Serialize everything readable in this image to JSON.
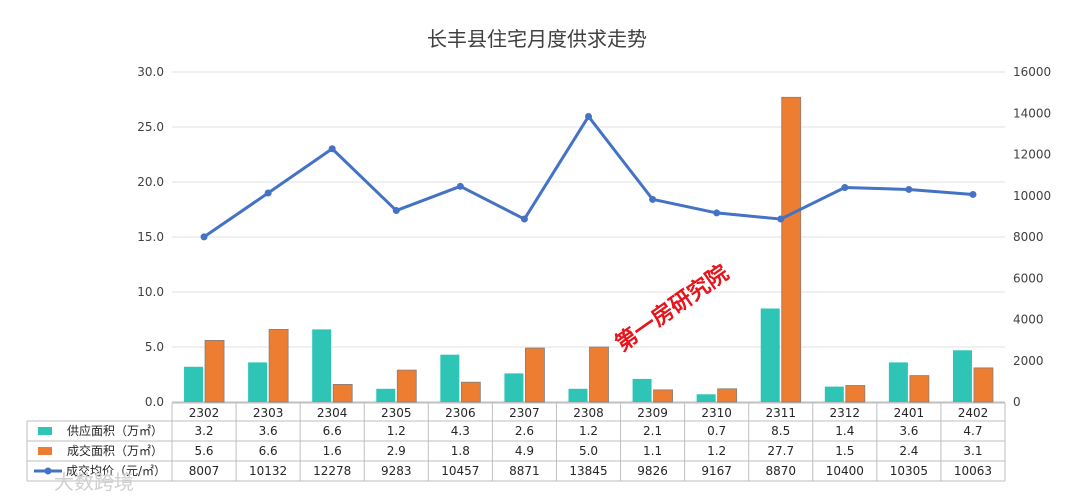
{
  "chart_data": {
    "type": "bar",
    "title": "长丰县住宅月度供求走势",
    "categories": [
      "2302",
      "2303",
      "2304",
      "2305",
      "2306",
      "2307",
      "2308",
      "2309",
      "2310",
      "2311",
      "2312",
      "2401",
      "2402"
    ],
    "series": [
      {
        "name": "供应面积（万㎡）",
        "type": "bar",
        "axis": "left",
        "color": "#2ec4b6",
        "values": [
          3.2,
          3.6,
          6.6,
          1.2,
          4.3,
          2.6,
          1.2,
          2.1,
          0.7,
          8.5,
          1.4,
          3.6,
          4.7
        ],
        "labels": [
          "3.2",
          "3.6",
          "6.6",
          "1.2",
          "4.3",
          "2.6",
          "1.2",
          "2.1",
          "0.7",
          "8.5",
          "1.4",
          "3.6",
          "4.7"
        ]
      },
      {
        "name": "成交面积（万㎡）",
        "type": "bar",
        "axis": "left",
        "color": "#ed7d31",
        "values": [
          5.6,
          6.6,
          1.6,
          2.9,
          1.8,
          4.9,
          5.0,
          1.1,
          1.2,
          27.7,
          1.5,
          2.4,
          3.1
        ],
        "labels": [
          "5.6",
          "6.6",
          "1.6",
          "2.9",
          "1.8",
          "4.9",
          "5.0",
          "1.1",
          "1.2",
          "27.7",
          "1.5",
          "2.4",
          "3.1"
        ]
      },
      {
        "name": "成交均价（元/㎡）",
        "type": "line",
        "axis": "right",
        "color": "#4472c4",
        "values": [
          8007,
          10132,
          12278,
          9283,
          10457,
          8871,
          13845,
          9826,
          9167,
          8870,
          10400,
          10305,
          10063
        ],
        "labels": [
          "8007",
          "10132",
          "12278",
          "9283",
          "10457",
          "8871",
          "13845",
          "9826",
          "9167",
          "8870",
          "10400",
          "10305",
          "10063"
        ]
      }
    ],
    "y_left": {
      "min": 0,
      "max": 30,
      "ticks": [
        "0.0",
        "5.0",
        "10.0",
        "15.0",
        "20.0",
        "25.0",
        "30.0"
      ]
    },
    "y_right": {
      "min": 0,
      "max": 16000,
      "ticks": [
        "0",
        "2000",
        "4000",
        "6000",
        "8000",
        "10000",
        "12000",
        "14000",
        "16000"
      ]
    },
    "grid": true,
    "legend": "data-table"
  },
  "watermark": "第一房研究院",
  "logo": "大数跨境"
}
